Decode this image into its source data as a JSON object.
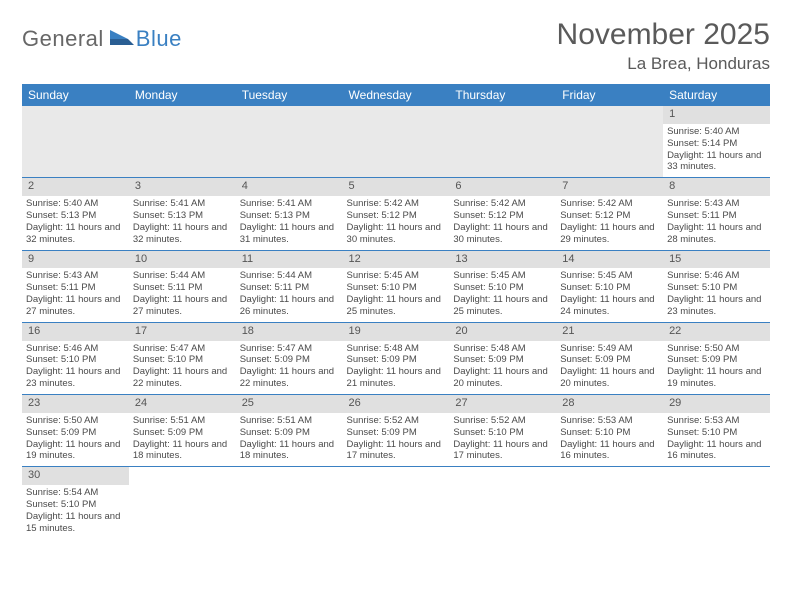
{
  "brand": {
    "part1": "General",
    "part2": "Blue"
  },
  "title": "November 2025",
  "location": "La Brea, Honduras",
  "colors": {
    "header_bg": "#3a80c2",
    "daynum_bg": "#e0e0e0",
    "blank_bg": "#e9e9e9",
    "text": "#4a4a4a",
    "rule": "#3a80c2"
  },
  "weekdays": [
    "Sunday",
    "Monday",
    "Tuesday",
    "Wednesday",
    "Thursday",
    "Friday",
    "Saturday"
  ],
  "first_weekday_index": 6,
  "days": [
    {
      "n": 1,
      "sr": "5:40 AM",
      "ss": "5:14 PM",
      "dl": "11 hours and 33 minutes."
    },
    {
      "n": 2,
      "sr": "5:40 AM",
      "ss": "5:13 PM",
      "dl": "11 hours and 32 minutes."
    },
    {
      "n": 3,
      "sr": "5:41 AM",
      "ss": "5:13 PM",
      "dl": "11 hours and 32 minutes."
    },
    {
      "n": 4,
      "sr": "5:41 AM",
      "ss": "5:13 PM",
      "dl": "11 hours and 31 minutes."
    },
    {
      "n": 5,
      "sr": "5:42 AM",
      "ss": "5:12 PM",
      "dl": "11 hours and 30 minutes."
    },
    {
      "n": 6,
      "sr": "5:42 AM",
      "ss": "5:12 PM",
      "dl": "11 hours and 30 minutes."
    },
    {
      "n": 7,
      "sr": "5:42 AM",
      "ss": "5:12 PM",
      "dl": "11 hours and 29 minutes."
    },
    {
      "n": 8,
      "sr": "5:43 AM",
      "ss": "5:11 PM",
      "dl": "11 hours and 28 minutes."
    },
    {
      "n": 9,
      "sr": "5:43 AM",
      "ss": "5:11 PM",
      "dl": "11 hours and 27 minutes."
    },
    {
      "n": 10,
      "sr": "5:44 AM",
      "ss": "5:11 PM",
      "dl": "11 hours and 27 minutes."
    },
    {
      "n": 11,
      "sr": "5:44 AM",
      "ss": "5:11 PM",
      "dl": "11 hours and 26 minutes."
    },
    {
      "n": 12,
      "sr": "5:45 AM",
      "ss": "5:10 PM",
      "dl": "11 hours and 25 minutes."
    },
    {
      "n": 13,
      "sr": "5:45 AM",
      "ss": "5:10 PM",
      "dl": "11 hours and 25 minutes."
    },
    {
      "n": 14,
      "sr": "5:45 AM",
      "ss": "5:10 PM",
      "dl": "11 hours and 24 minutes."
    },
    {
      "n": 15,
      "sr": "5:46 AM",
      "ss": "5:10 PM",
      "dl": "11 hours and 23 minutes."
    },
    {
      "n": 16,
      "sr": "5:46 AM",
      "ss": "5:10 PM",
      "dl": "11 hours and 23 minutes."
    },
    {
      "n": 17,
      "sr": "5:47 AM",
      "ss": "5:10 PM",
      "dl": "11 hours and 22 minutes."
    },
    {
      "n": 18,
      "sr": "5:47 AM",
      "ss": "5:09 PM",
      "dl": "11 hours and 22 minutes."
    },
    {
      "n": 19,
      "sr": "5:48 AM",
      "ss": "5:09 PM",
      "dl": "11 hours and 21 minutes."
    },
    {
      "n": 20,
      "sr": "5:48 AM",
      "ss": "5:09 PM",
      "dl": "11 hours and 20 minutes."
    },
    {
      "n": 21,
      "sr": "5:49 AM",
      "ss": "5:09 PM",
      "dl": "11 hours and 20 minutes."
    },
    {
      "n": 22,
      "sr": "5:50 AM",
      "ss": "5:09 PM",
      "dl": "11 hours and 19 minutes."
    },
    {
      "n": 23,
      "sr": "5:50 AM",
      "ss": "5:09 PM",
      "dl": "11 hours and 19 minutes."
    },
    {
      "n": 24,
      "sr": "5:51 AM",
      "ss": "5:09 PM",
      "dl": "11 hours and 18 minutes."
    },
    {
      "n": 25,
      "sr": "5:51 AM",
      "ss": "5:09 PM",
      "dl": "11 hours and 18 minutes."
    },
    {
      "n": 26,
      "sr": "5:52 AM",
      "ss": "5:09 PM",
      "dl": "11 hours and 17 minutes."
    },
    {
      "n": 27,
      "sr": "5:52 AM",
      "ss": "5:10 PM",
      "dl": "11 hours and 17 minutes."
    },
    {
      "n": 28,
      "sr": "5:53 AM",
      "ss": "5:10 PM",
      "dl": "11 hours and 16 minutes."
    },
    {
      "n": 29,
      "sr": "5:53 AM",
      "ss": "5:10 PM",
      "dl": "11 hours and 16 minutes."
    },
    {
      "n": 30,
      "sr": "5:54 AM",
      "ss": "5:10 PM",
      "dl": "11 hours and 15 minutes."
    }
  ],
  "labels": {
    "sunrise": "Sunrise:",
    "sunset": "Sunset:",
    "daylight": "Daylight:"
  }
}
